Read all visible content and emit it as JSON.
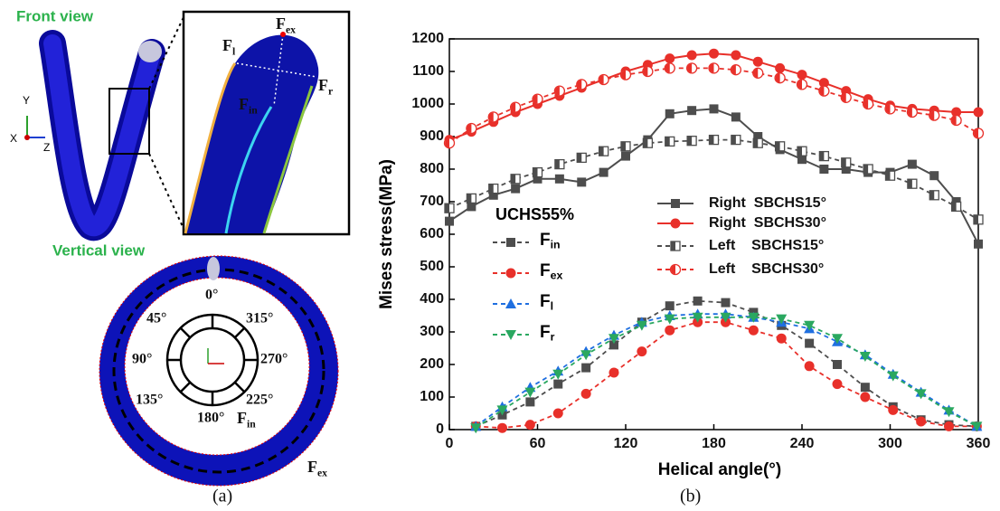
{
  "panel_a": {
    "front_view": "Front view",
    "vertical_view": "Vertical view",
    "axis_y": "Y",
    "axis_x": "X",
    "axis_z": "Z",
    "zoom_labels": [
      "Fex",
      "Fl",
      "Fr",
      "Fin"
    ],
    "angles": [
      "0°",
      "45°",
      "315°",
      "90°",
      "270°",
      "135°",
      "225°",
      "180°"
    ],
    "ring_in": "Fin",
    "ring_ex": "Fex",
    "caption": "(a)"
  },
  "chart_data": {
    "type": "line",
    "caption": "(b)",
    "x_label": "Helical angle(°)",
    "y_label": "Mises stress(MPa)",
    "xlim": [
      0,
      360
    ],
    "xticks": [
      0,
      60,
      120,
      180,
      240,
      300,
      360
    ],
    "ylim": [
      0,
      1200
    ],
    "yticks": [
      0,
      100,
      200,
      300,
      400,
      500,
      600,
      700,
      800,
      900,
      1000,
      1100,
      1200
    ],
    "legend_title": "UCHS55%",
    "series": [
      {
        "name": "Right  SBCHS15°",
        "color": "#4d4d4d",
        "dashed": false,
        "marker": "square",
        "fill": "full",
        "x": [
          0,
          15,
          30,
          45,
          60,
          75,
          90,
          105,
          120,
          135,
          150,
          165,
          180,
          195,
          210,
          225,
          240,
          255,
          270,
          285,
          300,
          315,
          330,
          345,
          360
        ],
        "values": [
          640,
          685,
          720,
          740,
          770,
          770,
          760,
          790,
          840,
          890,
          970,
          980,
          985,
          960,
          900,
          860,
          830,
          800,
          800,
          790,
          790,
          815,
          780,
          700,
          570
        ]
      },
      {
        "name": "Right  SBCHS30°",
        "color": "#e8302a",
        "dashed": false,
        "marker": "circle",
        "fill": "full",
        "x": [
          0,
          15,
          30,
          45,
          60,
          75,
          90,
          105,
          120,
          135,
          150,
          165,
          180,
          195,
          210,
          225,
          240,
          255,
          270,
          285,
          300,
          315,
          330,
          345,
          360
        ],
        "values": [
          890,
          915,
          945,
          975,
          1000,
          1025,
          1050,
          1075,
          1100,
          1120,
          1140,
          1150,
          1155,
          1150,
          1130,
          1110,
          1090,
          1065,
          1040,
          1015,
          995,
          985,
          980,
          975,
          975
        ]
      },
      {
        "name": "Left    SBCHS15°",
        "color": "#4d4d4d",
        "dashed": true,
        "marker": "square",
        "fill": "half",
        "x": [
          0,
          15,
          30,
          45,
          60,
          75,
          90,
          105,
          120,
          135,
          150,
          165,
          180,
          195,
          210,
          225,
          240,
          255,
          270,
          285,
          300,
          315,
          330,
          345,
          360
        ],
        "values": [
          680,
          710,
          740,
          770,
          790,
          815,
          835,
          855,
          870,
          880,
          885,
          887,
          890,
          890,
          880,
          870,
          855,
          840,
          820,
          800,
          780,
          755,
          720,
          685,
          645
        ]
      },
      {
        "name": "Left    SBCHS30°",
        "color": "#e8302a",
        "dashed": true,
        "marker": "circle",
        "fill": "half",
        "x": [
          0,
          15,
          30,
          45,
          60,
          75,
          90,
          105,
          120,
          135,
          150,
          165,
          180,
          195,
          210,
          225,
          240,
          255,
          270,
          285,
          300,
          315,
          330,
          345,
          360
        ],
        "values": [
          880,
          925,
          960,
          990,
          1015,
          1040,
          1060,
          1075,
          1090,
          1100,
          1110,
          1110,
          1110,
          1105,
          1095,
          1080,
          1060,
          1040,
          1020,
          1000,
          985,
          975,
          965,
          950,
          910
        ]
      },
      {
        "name": "Fin",
        "color": "#4d4d4d",
        "dashed": true,
        "marker": "square",
        "fill": "full",
        "x": [
          18,
          36,
          55,
          74,
          93,
          112,
          131,
          150,
          169,
          188,
          207,
          226,
          245,
          264,
          283,
          302,
          321,
          340,
          359
        ],
        "values": [
          10,
          45,
          85,
          140,
          190,
          260,
          330,
          380,
          395,
          390,
          360,
          320,
          265,
          200,
          130,
          70,
          30,
          15,
          10
        ]
      },
      {
        "name": "Fex",
        "color": "#e8302a",
        "dashed": true,
        "marker": "circle",
        "fill": "full",
        "x": [
          18,
          36,
          55,
          74,
          93,
          112,
          131,
          150,
          169,
          188,
          207,
          226,
          245,
          264,
          283,
          302,
          321,
          340,
          359
        ],
        "values": [
          10,
          5,
          15,
          50,
          110,
          175,
          240,
          305,
          330,
          330,
          305,
          280,
          195,
          140,
          100,
          60,
          25,
          10,
          10
        ]
      },
      {
        "name": "Fl",
        "color": "#1f6fe0",
        "dashed": true,
        "marker": "triangle-up",
        "fill": "full",
        "x": [
          18,
          36,
          55,
          74,
          93,
          112,
          131,
          150,
          169,
          188,
          207,
          226,
          245,
          264,
          283,
          302,
          321,
          340,
          359
        ],
        "values": [
          10,
          70,
          130,
          180,
          240,
          290,
          330,
          350,
          355,
          355,
          345,
          330,
          310,
          270,
          230,
          170,
          115,
          60,
          10
        ]
      },
      {
        "name": "Fr",
        "color": "#2aa860",
        "dashed": true,
        "marker": "triangle-down",
        "fill": "full",
        "x": [
          18,
          36,
          55,
          74,
          93,
          112,
          131,
          150,
          169,
          188,
          207,
          226,
          245,
          264,
          283,
          302,
          321,
          340,
          359
        ],
        "values": [
          5,
          60,
          115,
          170,
          230,
          280,
          320,
          340,
          345,
          345,
          345,
          340,
          320,
          280,
          225,
          165,
          110,
          55,
          10
        ]
      }
    ]
  }
}
